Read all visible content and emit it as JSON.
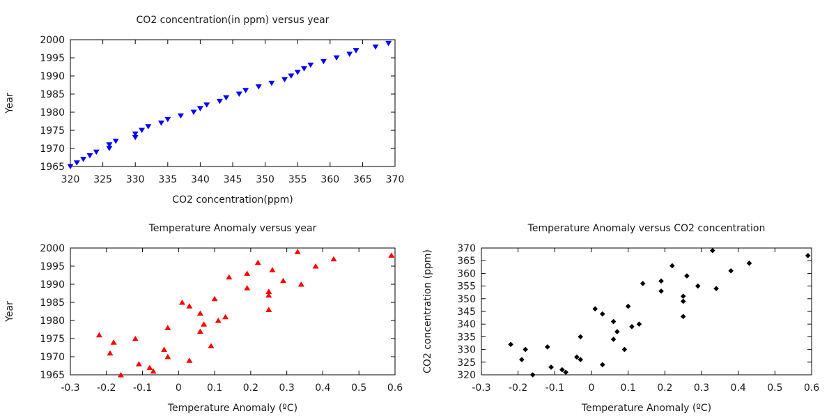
{
  "chart_data": [
    {
      "type": "scatter",
      "title": "CO2 concentration(in ppm) versus year",
      "xlabel": "CO2 concentration(ppm)",
      "ylabel": "Year",
      "xlim": [
        320,
        370
      ],
      "ylim": [
        1965,
        2000
      ],
      "xticks": [
        320,
        325,
        330,
        335,
        340,
        345,
        350,
        355,
        360,
        365,
        370
      ],
      "yticks": [
        1965,
        1970,
        1975,
        1980,
        1985,
        1990,
        1995,
        2000
      ],
      "grid": false,
      "marker": "triangle-down",
      "color": "#0000ff",
      "points": [
        [
          320,
          1965
        ],
        [
          321,
          1966
        ],
        [
          322,
          1967
        ],
        [
          323,
          1968
        ],
        [
          324,
          1969
        ],
        [
          326,
          1970
        ],
        [
          326,
          1971
        ],
        [
          327,
          1972
        ],
        [
          330,
          1973
        ],
        [
          330,
          1974
        ],
        [
          331,
          1975
        ],
        [
          332,
          1976
        ],
        [
          334,
          1977
        ],
        [
          335,
          1978
        ],
        [
          337,
          1979
        ],
        [
          339,
          1980
        ],
        [
          340,
          1981
        ],
        [
          341,
          1982
        ],
        [
          343,
          1983
        ],
        [
          344,
          1984
        ],
        [
          346,
          1985
        ],
        [
          347,
          1986
        ],
        [
          349,
          1987
        ],
        [
          351,
          1988
        ],
        [
          353,
          1989
        ],
        [
          354,
          1990
        ],
        [
          355,
          1991
        ],
        [
          356,
          1992
        ],
        [
          357,
          1993
        ],
        [
          359,
          1994
        ],
        [
          361,
          1995
        ],
        [
          363,
          1996
        ],
        [
          364,
          1997
        ],
        [
          367,
          1998
        ],
        [
          369,
          1999
        ]
      ]
    },
    {
      "type": "scatter",
      "title": "Temperature Anomaly versus year",
      "xlabel": "Temperature Anomaly (ºC)",
      "ylabel": "Year",
      "xlim": [
        -0.3,
        0.6
      ],
      "ylim": [
        1965,
        2000
      ],
      "xticks": [
        -0.3,
        -0.2,
        -0.1,
        0,
        0.1,
        0.2,
        0.3,
        0.4,
        0.5,
        0.6
      ],
      "yticks": [
        1965,
        1970,
        1975,
        1980,
        1985,
        1990,
        1995,
        2000
      ],
      "grid": false,
      "marker": "triangle-up",
      "color": "#ff0000",
      "points": [
        [
          -0.16,
          1965
        ],
        [
          -0.07,
          1966
        ],
        [
          -0.08,
          1967
        ],
        [
          -0.11,
          1968
        ],
        [
          0.03,
          1969
        ],
        [
          -0.03,
          1970
        ],
        [
          -0.19,
          1971
        ],
        [
          -0.04,
          1972
        ],
        [
          0.09,
          1973
        ],
        [
          -0.18,
          1974
        ],
        [
          -0.12,
          1975
        ],
        [
          -0.22,
          1976
        ],
        [
          0.06,
          1977
        ],
        [
          -0.03,
          1978
        ],
        [
          0.07,
          1979
        ],
        [
          0.11,
          1980
        ],
        [
          0.13,
          1981
        ],
        [
          0.06,
          1982
        ],
        [
          0.25,
          1983
        ],
        [
          0.03,
          1984
        ],
        [
          0.01,
          1985
        ],
        [
          0.1,
          1986
        ],
        [
          0.25,
          1987
        ],
        [
          0.25,
          1988
        ],
        [
          0.19,
          1989
        ],
        [
          0.34,
          1990
        ],
        [
          0.29,
          1991
        ],
        [
          0.14,
          1992
        ],
        [
          0.19,
          1993
        ],
        [
          0.26,
          1994
        ],
        [
          0.38,
          1995
        ],
        [
          0.22,
          1996
        ],
        [
          0.43,
          1997
        ],
        [
          0.59,
          1998
        ],
        [
          0.33,
          1999
        ]
      ]
    },
    {
      "type": "scatter",
      "title": "Temperature Anomaly versus CO2 concentration",
      "xlabel": "Temperature Anomaly (ºC)",
      "ylabel": "CO2 concentration (ppm)",
      "xlim": [
        -0.3,
        0.6
      ],
      "ylim": [
        320,
        370
      ],
      "xticks": [
        -0.3,
        -0.2,
        -0.1,
        0,
        0.1,
        0.2,
        0.3,
        0.4,
        0.5,
        0.6
      ],
      "yticks": [
        320,
        325,
        330,
        335,
        340,
        345,
        350,
        355,
        360,
        365,
        370
      ],
      "grid": false,
      "marker": "diamond",
      "color": "#000000",
      "points": [
        [
          -0.16,
          320
        ],
        [
          -0.07,
          321
        ],
        [
          -0.08,
          322
        ],
        [
          -0.11,
          323
        ],
        [
          0.03,
          324
        ],
        [
          -0.19,
          326
        ],
        [
          -0.04,
          327
        ],
        [
          -0.03,
          326
        ],
        [
          0.09,
          330
        ],
        [
          -0.18,
          330
        ],
        [
          -0.12,
          331
        ],
        [
          -0.22,
          332
        ],
        [
          0.06,
          334
        ],
        [
          -0.03,
          335
        ],
        [
          0.07,
          337
        ],
        [
          0.11,
          339
        ],
        [
          0.13,
          340
        ],
        [
          0.06,
          341
        ],
        [
          0.03,
          344
        ],
        [
          0.25,
          343
        ],
        [
          0.01,
          346
        ],
        [
          0.1,
          347
        ],
        [
          0.25,
          349
        ],
        [
          0.25,
          351
        ],
        [
          0.19,
          353
        ],
        [
          0.34,
          354
        ],
        [
          0.29,
          355
        ],
        [
          0.14,
          356
        ],
        [
          0.19,
          357
        ],
        [
          0.26,
          359
        ],
        [
          0.38,
          361
        ],
        [
          0.22,
          363
        ],
        [
          0.43,
          364
        ],
        [
          0.59,
          367
        ],
        [
          0.33,
          369
        ]
      ]
    }
  ]
}
